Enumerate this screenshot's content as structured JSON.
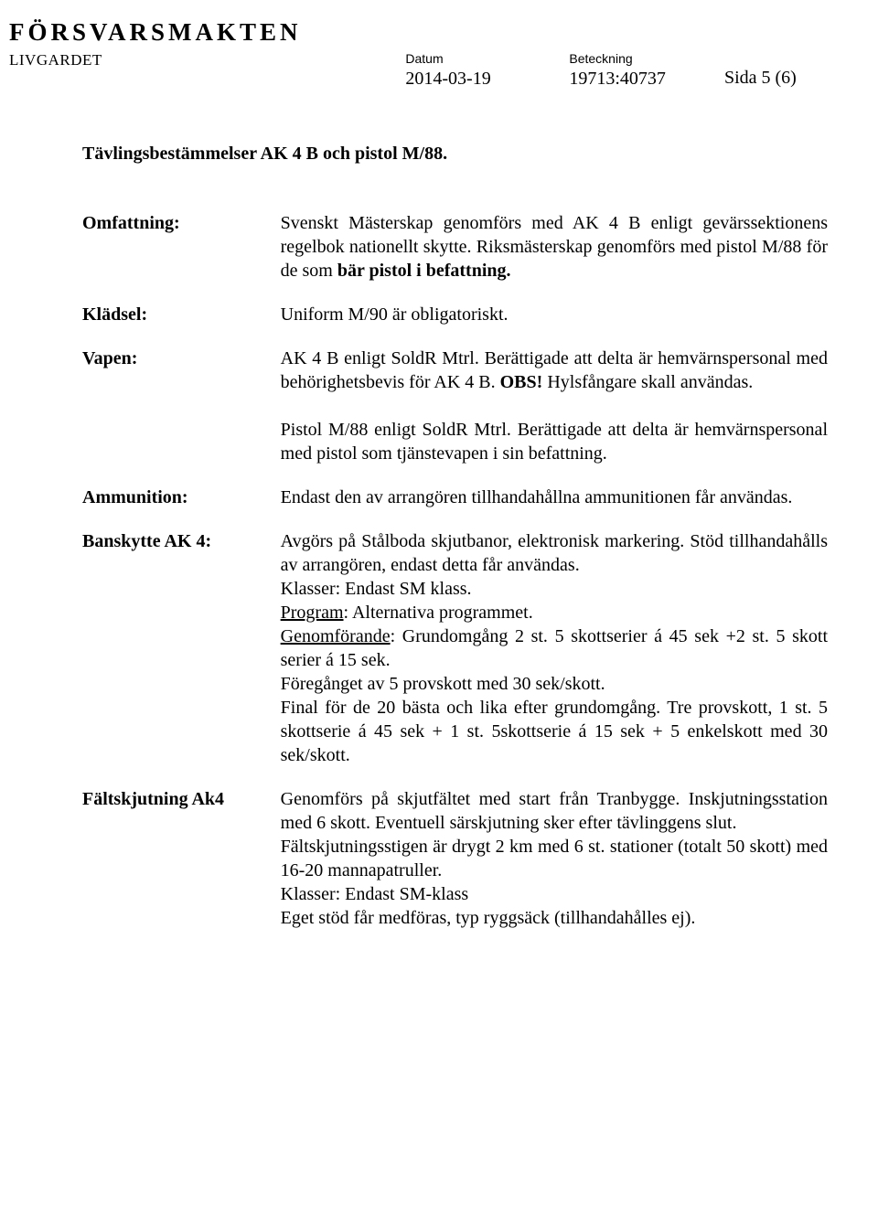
{
  "header": {
    "logo": "FÖRSVARSMAKTEN",
    "sub_logo": "LIVGARDET",
    "date_label": "Datum",
    "date_value": "2014-03-19",
    "ref_label": "Beteckning",
    "ref_value": "19713:40737",
    "page_label": "Sida 5 (6)"
  },
  "title": "Tävlingsbestämmelser AK 4 B och pistol M/88.",
  "rows": {
    "omfattning": {
      "label": "Omfattning:",
      "text1": "Svenskt Mästerskap genomförs med AK 4 B  enligt gevärssektionens regelbok nationellt skytte. Riksmästerskap genomförs med pistol M/88 för de som ",
      "bold1": "bär pistol i befattning.",
      "bold_note": ""
    },
    "kladsel": {
      "label": "Klädsel:",
      "value": "Uniform M/90 är obligatoriskt."
    },
    "vapen": {
      "label": "Vapen:",
      "p1a": "AK 4 B enligt SoldR Mtrl. Berättigade att delta är hemvärnspersonal med behörighetsbevis för AK 4 B. ",
      "p1b_bold": "OBS!",
      "p1c": " Hylsfångare skall användas.",
      "p2": "Pistol M/88 enligt SoldR Mtrl. Berättigade att delta är hemvärnspersonal med pistol som tjänstevapen i sin befattning."
    },
    "ammunition": {
      "label": "Ammunition:",
      "value": "Endast den av arrangören tillhandahållna ammunitionen får användas."
    },
    "banskytte": {
      "label": "Banskytte AK 4:",
      "p1": "Avgörs på Stålboda skjutbanor, elektronisk markering. Stöd tillhandahålls av arrangören, endast detta får användas.",
      "klasser": "Klasser: Endast SM klass.",
      "program_u": "Program",
      "program_t": ": Alternativa programmet.",
      "genom_u": "Genomförande",
      "genom_t": ": Grundomgång 2 st. 5 skottserier á 45 sek +2 st. 5 skott serier á 15 sek.",
      "p2": "Föregånget av 5 provskott med 30 sek/skott.",
      "p3": "Final för de 20 bästa och lika efter grundomgång. Tre provskott, 1 st. 5 skottserie á 45 sek + 1 st. 5skottserie á 15 sek + 5 enkelskott med 30 sek/skott."
    },
    "faltskjutning": {
      "label": "Fältskjutning Ak4",
      "p1": "Genomförs på skjutfältet med start från Tranbygge. Inskjutningsstation med 6 skott. Eventuell särskjutning sker efter tävlinggens slut.",
      "p2": "Fältskjutningsstigen är drygt 2 km med 6 st. stationer (totalt 50 skott) med 16-20 mannapatruller.",
      "p3": "Klasser: Endast SM-klass",
      "p4": "Eget stöd får medföras, typ ryggsäck (tillhandahålles ej)."
    }
  }
}
